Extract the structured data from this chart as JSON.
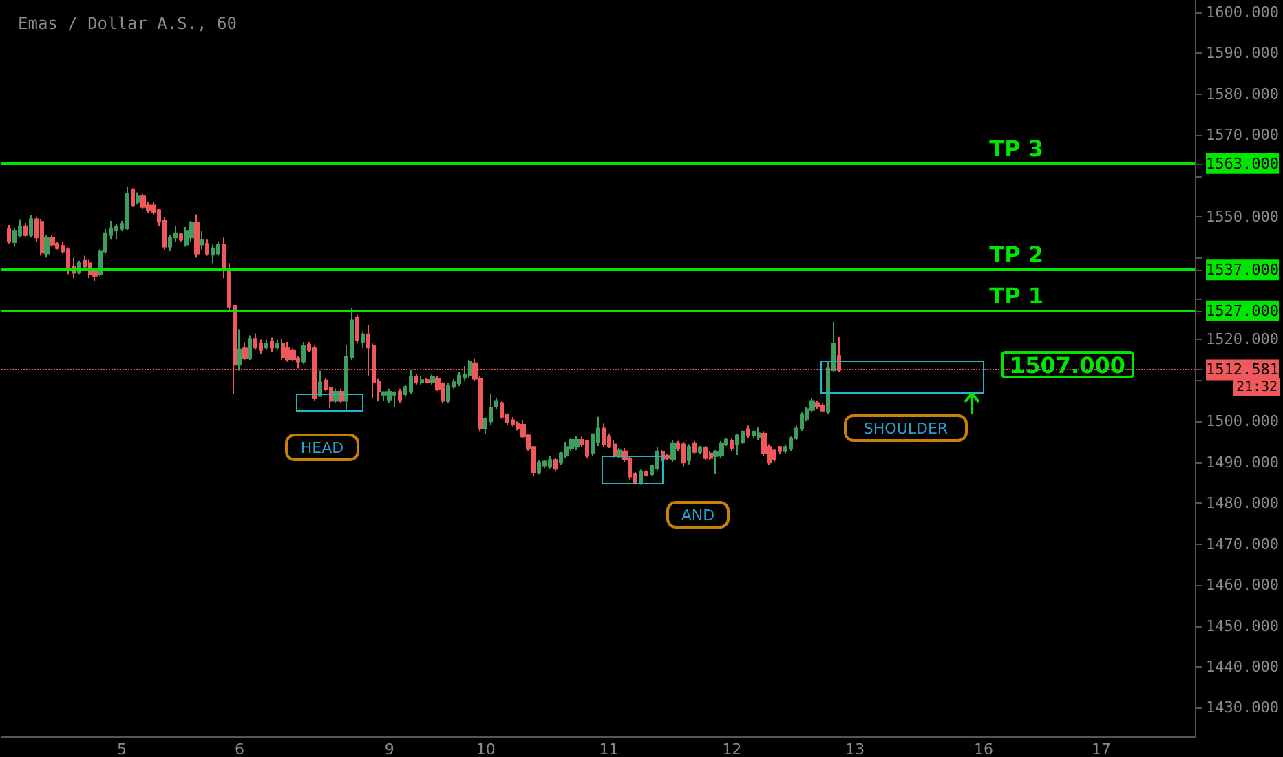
{
  "chart_data": {
    "type": "candlestick",
    "title": "Emas / Dollar A.S., 60",
    "categories": [
      null,
      null,
      null,
      null,
      null,
      null,
      null,
      null,
      null,
      null,
      null,
      null,
      null,
      null,
      null,
      null,
      null,
      null,
      null,
      null,
      null,
      null,
      "5",
      null,
      null,
      null,
      null,
      null,
      null,
      null,
      null,
      null,
      null,
      null,
      null,
      null,
      null,
      null,
      null,
      null,
      null,
      null,
      null,
      null,
      "6",
      null,
      null,
      null,
      null,
      null,
      null,
      null,
      null,
      null,
      null,
      null,
      null,
      null,
      null,
      null,
      null,
      null,
      null,
      null,
      null,
      null,
      null,
      null,
      null,
      null,
      null,
      null,
      "9",
      null,
      null,
      null,
      null,
      null,
      null,
      null,
      null,
      null,
      null,
      null,
      null,
      null,
      null,
      null,
      null,
      null,
      "10",
      null,
      null,
      null,
      null,
      null,
      null,
      null,
      null,
      null,
      null,
      null,
      null,
      null,
      null,
      null,
      null,
      null,
      null,
      null,
      null,
      null,
      null,
      "11",
      null,
      null,
      null,
      null,
      null,
      null,
      null,
      null,
      null,
      null,
      null,
      null,
      null,
      null,
      null,
      null,
      null,
      null,
      null,
      null,
      null,
      null,
      "12",
      null,
      null,
      null,
      null,
      null,
      null,
      null,
      null,
      null,
      null,
      null,
      null,
      null,
      null,
      null,
      null,
      null,
      null,
      null,
      null,
      null,
      null,
      "13",
      null,
      null,
      null,
      null,
      null,
      null,
      null,
      null,
      null,
      null,
      null,
      null,
      null,
      null,
      null,
      null,
      null,
      null,
      null,
      null,
      null,
      null,
      null,
      "16",
      null,
      null,
      null,
      null,
      null,
      null,
      null,
      null,
      null,
      null,
      null,
      null,
      null,
      null,
      null,
      null,
      null,
      null,
      null,
      null,
      null,
      "17",
      null,
      null,
      null,
      null,
      null,
      null,
      null,
      null,
      null,
      null,
      null,
      null,
      null,
      null,
      null,
      null,
      null
    ],
    "ohlc": [
      null,
      [
        1547,
        1548,
        1543.5,
        1544
      ],
      [
        1543.8,
        1547.1,
        1542.7,
        1546.6
      ],
      [
        1545.5,
        1549.4,
        1544.9,
        1547.7
      ],
      [
        1547.7,
        1548.5,
        1545,
        1545.5
      ],
      [
        1545.5,
        1550.5,
        1544.9,
        1549.4
      ],
      [
        1549.4,
        1550,
        1544,
        1544.9
      ],
      [
        1548.8,
        1549.5,
        1540.5,
        1541.2
      ],
      [
        1541,
        1545.5,
        1540,
        1544.9
      ],
      [
        1544.9,
        1545.5,
        1542.7,
        1543.2
      ],
      [
        1543.4,
        1543.8,
        1542,
        1542.3
      ],
      [
        1542.9,
        1544,
        1541,
        1541.5
      ],
      [
        1542,
        1542.5,
        1536,
        1537.6
      ],
      [
        1537.8,
        1540,
        1535,
        1536.3
      ],
      [
        1536.5,
        1539.3,
        1536,
        1538.7
      ],
      [
        1539.3,
        1540.5,
        1537,
        1537.8
      ],
      [
        1538.7,
        1539.5,
        1535,
        1535.9
      ],
      [
        1536.7,
        1537.5,
        1534.2,
        1535.6
      ],
      [
        1535.9,
        1542,
        1535.5,
        1541.5
      ],
      [
        1541.5,
        1547,
        1541,
        1546
      ],
      [
        1545.5,
        1549,
        1544.4,
        1547.2
      ],
      [
        1546.6,
        1548.3,
        1544.4,
        1547.7
      ],
      [
        1547.1,
        1549,
        1546.6,
        1548.3
      ],
      [
        1547.1,
        1557.3,
        1546.8,
        1555.6
      ],
      [
        1556.7,
        1557,
        1552.4,
        1552.8
      ],
      [
        1553.6,
        1556,
        1553,
        1555
      ],
      [
        1555,
        1555.6,
        1552,
        1552.4
      ],
      [
        1552.8,
        1553.6,
        1551,
        1551.6
      ],
      [
        1552.8,
        1553.6,
        1550.5,
        1551.1
      ],
      [
        1551.6,
        1552,
        1547.7,
        1548.8
      ],
      [
        1549,
        1550,
        1542,
        1542.7
      ],
      [
        1542.7,
        1545.5,
        1541.6,
        1544.9
      ],
      [
        1544.9,
        1547.7,
        1543.8,
        1546
      ],
      [
        1545.7,
        1546,
        1544,
        1544.4
      ],
      [
        1543.2,
        1547.5,
        1542.7,
        1546.6
      ],
      [
        1544.9,
        1549,
        1544,
        1548.5
      ],
      [
        1548.6,
        1550.6,
        1540,
        1541
      ],
      [
        1543.2,
        1546.6,
        1542,
        1544.4
      ],
      [
        1543.4,
        1544.4,
        1540.5,
        1541
      ],
      [
        1540.7,
        1543.2,
        1538.7,
        1542.3
      ],
      [
        1541,
        1544,
        1540.5,
        1543.2
      ],
      [
        1543.2,
        1544.9,
        1535,
        1537
      ],
      [
        1537,
        1538.7,
        1526.7,
        1528
      ],
      [
        1528.3,
        1528.5,
        1506.7,
        1513.8
      ],
      [
        1513.8,
        1522.5,
        1512.4,
        1517.6
      ],
      [
        1518,
        1519.3,
        1515,
        1515.4
      ],
      [
        1515.4,
        1521,
        1515,
        1520.2
      ],
      [
        1520.2,
        1521.5,
        1517.6,
        1518
      ],
      [
        1519,
        1520,
        1516.5,
        1517.4
      ],
      [
        1518,
        1520,
        1517.6,
        1519
      ],
      [
        1519.4,
        1520.5,
        1517,
        1518
      ],
      [
        1518,
        1520,
        1517.6,
        1519
      ],
      [
        1519,
        1520.2,
        1515,
        1515.7
      ],
      [
        1518,
        1519.4,
        1514.6,
        1515.2
      ],
      [
        1517.4,
        1517.8,
        1514.8,
        1515.2
      ],
      [
        1515.4,
        1516,
        1512.9,
        1514.6
      ],
      [
        1514.6,
        1519.4,
        1514,
        1518.5
      ],
      [
        1518.7,
        1519.4,
        1517,
        1517.4
      ],
      [
        1518,
        1518.5,
        1505,
        1505.6
      ],
      [
        1506.2,
        1512.4,
        1506,
        1509.5
      ],
      [
        1510,
        1510.5,
        1507.4,
        1507.9
      ],
      [
        1508.2,
        1508.5,
        1503.2,
        1505
      ],
      [
        1505,
        1508,
        1504.4,
        1507.3
      ],
      [
        1507.3,
        1508,
        1504.5,
        1505
      ],
      [
        1505,
        1518.5,
        1502.8,
        1515.7
      ],
      [
        1515.7,
        1527.8,
        1515,
        1524.7
      ],
      [
        1525.3,
        1526,
        1519,
        1519.9
      ],
      [
        1519.3,
        1522,
        1518,
        1521.3
      ],
      [
        1521.3,
        1523.6,
        1511.2,
        1518
      ],
      [
        1518.5,
        1519,
        1505.6,
        1509.5
      ],
      [
        1509.8,
        1510.4,
        1505,
        1507.3
      ],
      [
        1506.5,
        1507.3,
        1505,
        1507.2
      ],
      [
        1505.3,
        1508,
        1504.5,
        1507.3
      ],
      [
        1506.5,
        1507.4,
        1503.6,
        1507
      ],
      [
        1507.3,
        1508,
        1504.5,
        1505.3
      ],
      [
        1506.6,
        1509,
        1506,
        1508.4
      ],
      [
        1507.3,
        1512.6,
        1506.7,
        1510.9
      ],
      [
        1510.9,
        1511.5,
        1509,
        1509.5
      ],
      [
        1509.6,
        1511,
        1509,
        1510.1
      ],
      [
        1510.1,
        1510.5,
        1509.3,
        1509.6
      ],
      [
        1509.6,
        1511.4,
        1509,
        1510.9
      ],
      [
        1510.4,
        1511,
        1507.5,
        1507.9
      ],
      [
        1509.3,
        1509.6,
        1504.6,
        1505
      ],
      [
        1505,
        1509.3,
        1504.5,
        1508.6
      ],
      [
        1508.4,
        1510.3,
        1508,
        1509.6
      ],
      [
        1509.3,
        1512,
        1508.6,
        1511.2
      ],
      [
        1510.6,
        1513.5,
        1510,
        1511.5
      ],
      [
        1511.2,
        1515,
        1510.7,
        1514.6
      ],
      [
        1514.2,
        1515.4,
        1509.8,
        1510.4
      ],
      [
        1510.4,
        1511,
        1497.5,
        1498.3
      ],
      [
        1498.3,
        1501,
        1497,
        1500.6
      ],
      [
        1500,
        1506.7,
        1499,
        1503.4
      ],
      [
        1503.6,
        1505.8,
        1503,
        1505
      ],
      [
        1504.5,
        1505,
        1500.6,
        1501.1
      ],
      [
        1501.7,
        1502,
        1499,
        1499.7
      ],
      [
        1500.3,
        1501,
        1498.8,
        1499.2
      ],
      [
        1499.6,
        1500,
        1497.8,
        1498.3
      ],
      [
        1499.2,
        1500.3,
        1496,
        1496.3
      ],
      [
        1496.6,
        1497,
        1492.7,
        1493.3
      ],
      [
        1493.8,
        1494,
        1486.7,
        1487.6
      ],
      [
        1487.6,
        1490.5,
        1487,
        1489.9
      ],
      [
        1489.2,
        1490.5,
        1488.6,
        1490.2
      ],
      [
        1489,
        1491.5,
        1488.5,
        1490.6
      ],
      [
        1490.6,
        1491,
        1487.8,
        1488.4
      ],
      [
        1489.9,
        1492.5,
        1489.3,
        1492.2
      ],
      [
        1491.6,
        1495,
        1491,
        1493.8
      ],
      [
        1493.3,
        1496,
        1492.7,
        1495.5
      ],
      [
        1493.8,
        1496.5,
        1493,
        1495.5
      ],
      [
        1495.5,
        1496.3,
        1493.8,
        1494.4
      ],
      [
        1495.2,
        1495.5,
        1491,
        1491.6
      ],
      [
        1492.2,
        1497,
        1491.6,
        1496.9
      ],
      [
        1495,
        1501.1,
        1494,
        1498.3
      ],
      [
        1498.3,
        1499.5,
        1493.8,
        1494.4
      ],
      [
        1496.3,
        1497,
        1493.5,
        1494
      ],
      [
        1494.4,
        1495.5,
        1491,
        1491.6
      ],
      [
        1491.4,
        1493.5,
        1491,
        1492.9
      ],
      [
        1492.7,
        1493.5,
        1490,
        1490.7
      ],
      [
        1491,
        1491.5,
        1485.8,
        1486.5
      ],
      [
        1487.1,
        1487.6,
        1484.5,
        1484.9
      ],
      [
        1484.9,
        1488.2,
        1484.5,
        1487.7
      ],
      [
        1487.7,
        1488,
        1486.5,
        1486.9
      ],
      [
        1487.1,
        1489.5,
        1486.8,
        1489.1
      ],
      [
        1488.5,
        1493.8,
        1488,
        1492.7
      ],
      [
        1492.5,
        1493,
        1490.2,
        1490.7
      ],
      [
        1491.6,
        1492,
        1490.5,
        1491
      ],
      [
        1490.7,
        1495.5,
        1490,
        1494.7
      ],
      [
        1494.7,
        1495.2,
        1492.7,
        1493.3
      ],
      [
        1494.4,
        1495,
        1489,
        1489.9
      ],
      [
        1490.5,
        1494.4,
        1489.5,
        1493.8
      ],
      [
        1494.7,
        1495.2,
        1492,
        1492.5
      ],
      [
        1492.5,
        1494,
        1492,
        1493.6
      ],
      [
        1493.6,
        1494,
        1490.5,
        1491
      ],
      [
        1492.2,
        1492.7,
        1490.5,
        1491
      ],
      [
        1491.5,
        1493,
        1487.1,
        1492.5
      ],
      [
        1491.8,
        1495.2,
        1491,
        1494.7
      ],
      [
        1494.4,
        1496,
        1494,
        1495.5
      ],
      [
        1495.2,
        1495.8,
        1492.7,
        1493.3
      ],
      [
        1494.4,
        1497,
        1491.8,
        1496.6
      ],
      [
        1495,
        1497.8,
        1494.5,
        1497.4
      ],
      [
        1498.1,
        1499,
        1496,
        1496.6
      ],
      [
        1496.6,
        1497.8,
        1496,
        1497.4
      ],
      [
        1496.1,
        1498.5,
        1495.5,
        1497.1
      ],
      [
        1497,
        1497.5,
        1491.6,
        1492.2
      ],
      [
        1493.8,
        1494.4,
        1489.3,
        1489.9
      ],
      [
        1492.9,
        1493.3,
        1490.2,
        1490.7
      ],
      [
        1493.8,
        1494,
        1492,
        1492.7
      ],
      [
        1492.7,
        1494.4,
        1492.2,
        1493.8
      ],
      [
        1493.3,
        1496.3,
        1492.7,
        1495.9
      ],
      [
        1495.9,
        1499,
        1495.5,
        1498.3
      ],
      [
        1498.3,
        1502.2,
        1497.7,
        1501.7
      ],
      [
        1500.6,
        1503.4,
        1500,
        1503
      ],
      [
        1502.8,
        1505.6,
        1502.3,
        1505
      ],
      [
        1504.5,
        1505,
        1503,
        1503.7
      ],
      [
        1503.9,
        1504.4,
        1502.2,
        1502.6
      ],
      [
        1502.3,
        1514.6,
        1501.9,
        1512.9
      ],
      [
        1512.5,
        1524.3,
        1512,
        1519
      ],
      [
        1516,
        1520.7,
        1512,
        1512.6
      ],
      null,
      null,
      null,
      null,
      null,
      null,
      null,
      null,
      null,
      null,
      null,
      null,
      null,
      null,
      null,
      null,
      null,
      null,
      null,
      null,
      null,
      null,
      null,
      null,
      null,
      null,
      null,
      null,
      null,
      null,
      null,
      null,
      null,
      null,
      null,
      null,
      null,
      null,
      null,
      null,
      null,
      null,
      null,
      null,
      null,
      null,
      null,
      null,
      null,
      null,
      null,
      null,
      null,
      null,
      null,
      null,
      null,
      null,
      null,
      null,
      null,
      null,
      null,
      null,
      null,
      null
    ],
    "colors": [
      null,
      "#f0595c",
      "#3e9e5f",
      "#3e9e5f",
      "#f0595c",
      "#3e9e5f",
      "#f0595c",
      "#f0595c",
      "#3e9e5f",
      "#f0595c",
      "#f0595c",
      "#f0595c",
      "#f0595c",
      "#f0595c",
      "#3e9e5f",
      "#f0595c",
      "#f0595c",
      "#f0595c",
      "#3e9e5f",
      "#3e9e5f",
      "#3e9e5f",
      "#3e9e5f",
      "#3e9e5f",
      "#3e9e5f",
      "#f0595c",
      "#3e9e5f",
      "#f0595c",
      "#f0595c",
      "#f0595c",
      "#f0595c",
      "#f0595c",
      "#3e9e5f",
      "#3e9e5f",
      "#f0595c",
      "#3e9e5f",
      "#3e9e5f",
      "#f0595c",
      "#3e9e5f",
      "#f0595c",
      "#3e9e5f",
      "#3e9e5f",
      "#f0595c",
      "#f0595c",
      "#f0595c",
      "#3e9e5f",
      "#f0595c",
      "#3e9e5f",
      "#f0595c",
      "#f0595c",
      "#3e9e5f",
      "#f0595c",
      "#3e9e5f",
      "#f0595c",
      "#f0595c",
      "#f0595c",
      "#f0595c",
      "#3e9e5f",
      "#f0595c",
      "#f0595c",
      "#3e9e5f",
      "#f0595c",
      "#f0595c",
      "#3e9e5f",
      "#f0595c",
      "#3e9e5f",
      "#3e9e5f",
      "#f0595c",
      "#3e9e5f",
      "#f0595c",
      "#f0595c",
      "#f0595c",
      "#3e9e5f",
      "#3e9e5f",
      "#3e9e5f",
      "#f0595c",
      "#3e9e5f",
      "#3e9e5f",
      "#f0595c",
      "#3e9e5f",
      "#f0595c",
      "#3e9e5f",
      "#f0595c",
      "#f0595c",
      "#3e9e5f",
      "#3e9e5f",
      "#3e9e5f",
      "#3e9e5f",
      "#3e9e5f",
      "#f0595c",
      "#f0595c",
      "#3e9e5f",
      "#3e9e5f",
      "#3e9e5f",
      "#f0595c",
      "#f0595c",
      "#f0595c",
      "#f0595c",
      "#f0595c",
      "#f0595c",
      "#f0595c",
      "#3e9e5f",
      "#3e9e5f",
      "#3e9e5f",
      "#f0595c",
      "#3e9e5f",
      "#3e9e5f",
      "#3e9e5f",
      "#3e9e5f",
      "#f0595c",
      "#f0595c",
      "#3e9e5f",
      "#3e9e5f",
      "#f0595c",
      "#f0595c",
      "#f0595c",
      "#3e9e5f",
      "#f0595c",
      "#f0595c",
      "#f0595c",
      "#3e9e5f",
      "#f0595c",
      "#3e9e5f",
      "#3e9e5f",
      "#f0595c",
      "#f0595c",
      "#3e9e5f",
      "#f0595c",
      "#f0595c",
      "#3e9e5f",
      "#f0595c",
      "#3e9e5f",
      "#f0595c",
      "#f0595c",
      "#3e9e5f",
      "#3e9e5f",
      "#3e9e5f",
      "#f0595c",
      "#3e9e5f",
      "#3e9e5f",
      "#f0595c",
      "#3e9e5f",
      "#3e9e5f",
      "#f0595c",
      "#f0595c",
      "#f0595c",
      "#f0595c",
      "#3e9e5f",
      "#3e9e5f",
      "#3e9e5f",
      "#3e9e5f",
      "#3e9e5f",
      "#3e9e5f",
      "#f0595c",
      "#f0595c",
      "#3e9e5f",
      "#3e9e5f",
      "#f0595c",
      null,
      null,
      null,
      null,
      null,
      null,
      null,
      null,
      null,
      null,
      null,
      null,
      null,
      null,
      null,
      null,
      null,
      null,
      null,
      null,
      null,
      null,
      null,
      null,
      null,
      null,
      null,
      null,
      null,
      null,
      null,
      null,
      null,
      null,
      null,
      null,
      null,
      null,
      null,
      null,
      null,
      null,
      null,
      null,
      null,
      null,
      null,
      null,
      null,
      null,
      null,
      null,
      null,
      null,
      null,
      null,
      null,
      null,
      null,
      null,
      null,
      null,
      null,
      null,
      null,
      null
    ],
    "ylim": [
      1423,
      1603
    ],
    "yticks": [
      {
        "value": 1430,
        "label": "1430.000"
      },
      {
        "value": 1440,
        "label": "1440.000"
      },
      {
        "value": 1450,
        "label": "1450.000"
      },
      {
        "value": 1460,
        "label": "1460.000"
      },
      {
        "value": 1470,
        "label": "1470.000"
      },
      {
        "value": 1480,
        "label": "1480.000"
      },
      {
        "value": 1490,
        "label": "1490.000"
      },
      {
        "value": 1500,
        "label": "1500.000"
      },
      {
        "value": 1510,
        "label": null
      },
      {
        "value": 1512.581,
        "label": "1512.581"
      },
      {
        "value": 1520,
        "label": "1520.000"
      },
      {
        "value": 1527,
        "label": "1527.000"
      },
      {
        "value": 1530,
        "label": null
      },
      {
        "value": 1537,
        "label": "1537.000"
      },
      {
        "value": 1540,
        "label": null
      },
      {
        "value": 1550,
        "label": "1550.000"
      },
      {
        "value": 1560,
        "label": null
      },
      {
        "value": 1563,
        "label": "1563.000"
      },
      {
        "value": 1570,
        "label": "1570.000"
      },
      {
        "value": 1580,
        "label": "1580.000"
      },
      {
        "value": 1590,
        "label": "1590.000"
      },
      {
        "value": 1600,
        "label": "1600.000"
      }
    ],
    "ref_lines": [
      {
        "axis": "y",
        "value": 1527,
        "label": "TP 1",
        "color": "#00e600"
      },
      {
        "axis": "y",
        "value": 1537,
        "label": "TP 2",
        "color": "#00e600"
      },
      {
        "axis": "y",
        "value": 1563,
        "label": "TP 3",
        "color": "#00e600"
      },
      {
        "axis": "y",
        "value": 1512.581,
        "color": "#f0595c",
        "line_style": "dotted"
      }
    ],
    "annotations": [
      "HEAD",
      "AND",
      "SHOULDER",
      "1507.000",
      "21:32"
    ]
  }
}
